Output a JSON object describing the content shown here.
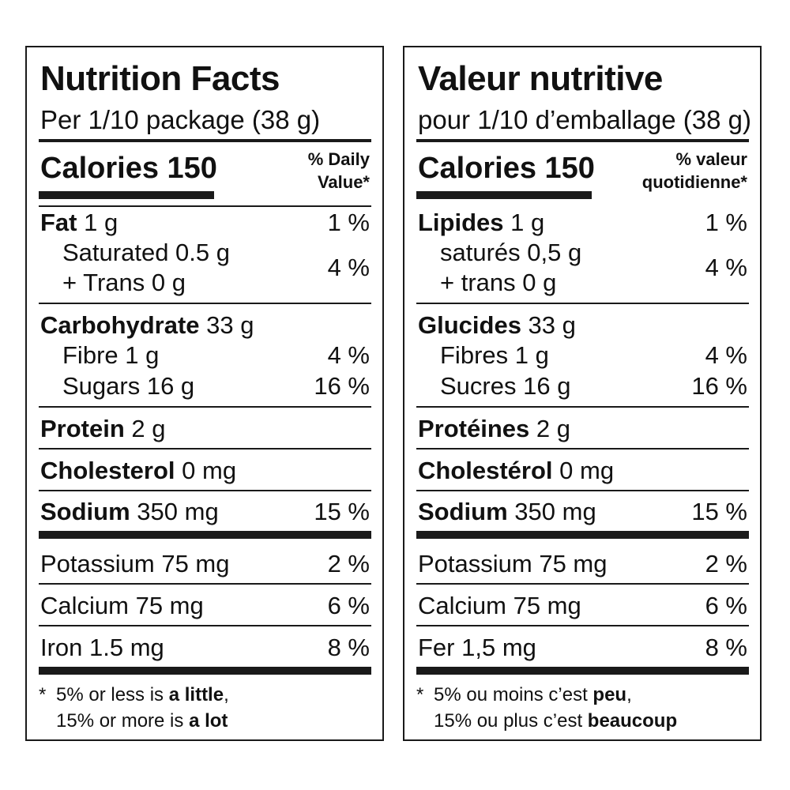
{
  "en": {
    "title": "Nutrition Facts",
    "serving": "Per 1/10 package (38 g)",
    "calories": "Calories 150",
    "dv_line1": "% Daily",
    "dv_line2": "Value*",
    "fat_name": "Fat",
    "fat_amt": " 1 g",
    "fat_pct": "1 %",
    "sat": "Saturated 0.5 g",
    "trans": "+ Trans 0 g",
    "sattrans_pct": "4 %",
    "carb_name": "Carbohydrate",
    "carb_amt": " 33 g",
    "fibre": "Fibre 1 g",
    "fibre_pct": "4 %",
    "sugars": "Sugars 16 g",
    "sugars_pct": "16 %",
    "protein_name": "Protein",
    "protein_amt": " 2 g",
    "chol_name": "Cholesterol",
    "chol_amt": " 0 mg",
    "sodium_name": "Sodium",
    "sodium_amt": " 350 mg",
    "sodium_pct": "15 %",
    "potassium": "Potassium 75 mg",
    "potassium_pct": "2 %",
    "calcium": "Calcium 75 mg",
    "calcium_pct": "6 %",
    "iron": "Iron 1.5 mg",
    "iron_pct": "8 %",
    "foot_star": "*",
    "foot1_a": "5% or less is ",
    "foot1_b": "a little",
    "foot1_c": ",",
    "foot2_a": "15% or more is ",
    "foot2_b": "a lot"
  },
  "fr": {
    "title": "Valeur nutritive",
    "serving": "pour 1/10 d’emballage (38 g)",
    "calories": "Calories 150",
    "dv_line1": "% valeur",
    "dv_line2": "quotidienne*",
    "fat_name": "Lipides",
    "fat_amt": " 1 g",
    "fat_pct": "1 %",
    "sat": "saturés 0,5 g",
    "trans": "+ trans 0 g",
    "sattrans_pct": "4 %",
    "carb_name": "Glucides",
    "carb_amt": " 33 g",
    "fibre": "Fibres 1 g",
    "fibre_pct": "4 %",
    "sugars": "Sucres 16 g",
    "sugars_pct": "16 %",
    "protein_name": "Protéines",
    "protein_amt": " 2 g",
    "chol_name": "Cholestérol",
    "chol_amt": " 0 mg",
    "sodium_name": "Sodium",
    "sodium_amt": " 350 mg",
    "sodium_pct": "15 %",
    "potassium": "Potassium 75 mg",
    "potassium_pct": "2 %",
    "calcium": "Calcium 75 mg",
    "calcium_pct": "6 %",
    "iron": "Fer 1,5 mg",
    "iron_pct": "8 %",
    "foot_star": "*",
    "foot1_a": "5% ou moins c’est ",
    "foot1_b": "peu",
    "foot1_c": ",",
    "foot2_a": "15% ou plus c’est ",
    "foot2_b": "beaucoup"
  }
}
